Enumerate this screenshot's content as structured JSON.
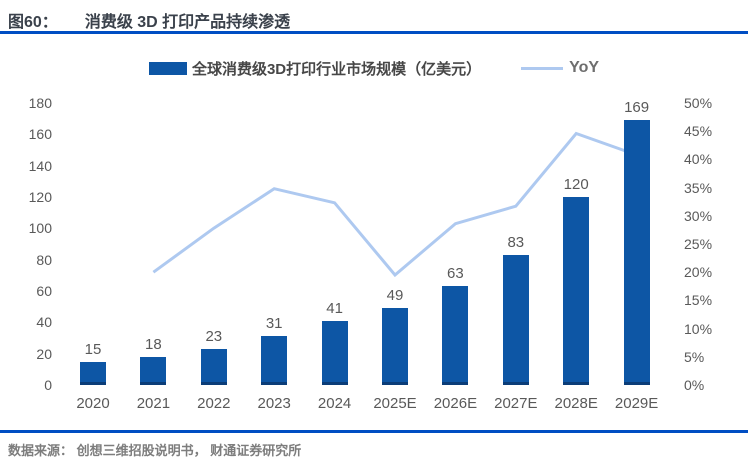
{
  "header": {
    "figure_label": "图60：",
    "title": "消费级 3D 打印产品持续渗透"
  },
  "legend": {
    "bar_label": "全球消费级3D打印行业市场规模（亿美元）",
    "line_label": "YoY"
  },
  "footer": {
    "source": "数据来源： 创想三维招股说明书， 财通证券研究所"
  },
  "colors": {
    "bar": "#0d56a5",
    "bar_edge": "#0b3d78",
    "line": "#aec9f0",
    "rule_blue": "#004ec3",
    "title_dark": "#3a414b",
    "label_gray": "#595959",
    "source_gray": "#7d7d7d"
  },
  "chart_data": {
    "type": "bar",
    "subtype": "bar+line-combo",
    "title": "消费级 3D 打印产品持续渗透",
    "categories": [
      "2020",
      "2021",
      "2022",
      "2023",
      "2024",
      "2025E",
      "2026E",
      "2027E",
      "2028E",
      "2029E"
    ],
    "series": [
      {
        "name": "全球消费级3D打印行业市场规模（亿美元）",
        "type": "bar",
        "axis": "left",
        "values": [
          15,
          18,
          23,
          31,
          41,
          49,
          63,
          83,
          120,
          169
        ],
        "data_labels": [
          "15",
          "18",
          "23",
          "31",
          "41",
          "49",
          "63",
          "83",
          "120",
          "169"
        ]
      },
      {
        "name": "YoY",
        "type": "line",
        "axis": "right",
        "values_pct": [
          null,
          20.0,
          27.8,
          34.8,
          32.3,
          19.5,
          28.6,
          31.7,
          44.6,
          40.8
        ]
      }
    ],
    "left_axis": {
      "min": 0,
      "max": 180,
      "step": 20,
      "ticks": [
        0,
        20,
        40,
        60,
        80,
        100,
        120,
        140,
        160,
        180
      ]
    },
    "right_axis": {
      "min": 0,
      "max": 50,
      "step": 5,
      "ticks": [
        "0%",
        "5%",
        "10%",
        "15%",
        "20%",
        "25%",
        "30%",
        "35%",
        "40%",
        "45%",
        "50%"
      ]
    },
    "grid": false,
    "legend_position": "top-center"
  }
}
